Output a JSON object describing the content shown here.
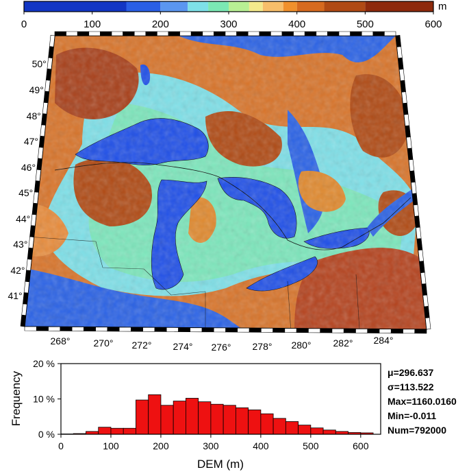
{
  "colorbar": {
    "unit": "m",
    "ticks": [
      "0",
      "100",
      "200",
      "300",
      "400",
      "500",
      "600"
    ],
    "tick_values": [
      0,
      100,
      200,
      300,
      400,
      500,
      600
    ],
    "range": [
      0,
      600
    ],
    "segments": [
      {
        "from": 0,
        "to": 150,
        "color": "#1236c4"
      },
      {
        "from": 150,
        "to": 200,
        "color": "#2a5fe6"
      },
      {
        "from": 200,
        "to": 240,
        "color": "#5b96f0"
      },
      {
        "from": 240,
        "to": 270,
        "color": "#7ee0e8"
      },
      {
        "from": 270,
        "to": 300,
        "color": "#7be8b4"
      },
      {
        "from": 300,
        "to": 330,
        "color": "#b8f094"
      },
      {
        "from": 330,
        "to": 350,
        "color": "#f4e98c"
      },
      {
        "from": 350,
        "to": 380,
        "color": "#f7be6a"
      },
      {
        "from": 380,
        "to": 400,
        "color": "#f0902c"
      },
      {
        "from": 400,
        "to": 440,
        "color": "#d66a1f"
      },
      {
        "from": 440,
        "to": 500,
        "color": "#b04a14"
      },
      {
        "from": 500,
        "to": 600,
        "color": "#8e2a0c"
      }
    ]
  },
  "map": {
    "lat_labels": [
      "50°",
      "49°",
      "48°",
      "47°",
      "46°",
      "45°",
      "44°",
      "43°",
      "42°",
      "41°"
    ],
    "lon_labels": [
      "268°",
      "270°",
      "272°",
      "274°",
      "276°",
      "278°",
      "280°",
      "282°",
      "284°"
    ],
    "colors": {
      "lake": "#1f4fe8",
      "low": "#2a62e6",
      "mid_cyan": "#7ee0e8",
      "mid_green": "#7be8b4",
      "orange": "#d8742a",
      "high": "#a8401a"
    }
  },
  "histogram": {
    "ylabel": "Frequency",
    "xlabel": "DEM (m)",
    "y_ticks": [
      "0 %",
      "10 %",
      "20 %"
    ],
    "y_tick_values": [
      0,
      10,
      20
    ],
    "x_ticks": [
      "0",
      "100",
      "200",
      "300",
      "400",
      "500",
      "600"
    ],
    "x_tick_values": [
      0,
      100,
      200,
      300,
      400,
      500,
      600
    ],
    "xlim": [
      0,
      640
    ],
    "ylim": [
      0,
      20
    ],
    "bar_color": "#ee1111",
    "stats": [
      "μ=296.637",
      "σ=113.522",
      "Max=1160.0160",
      "Min=-0.011",
      "Num=792000"
    ]
  },
  "chart_data": {
    "type": "bar",
    "title": "",
    "xlabel": "DEM (m)",
    "ylabel": "Frequency",
    "bin_width": 25,
    "bin_starts": [
      0,
      25,
      50,
      75,
      100,
      125,
      150,
      175,
      200,
      225,
      250,
      275,
      300,
      325,
      350,
      375,
      400,
      425,
      450,
      475,
      500,
      525,
      550,
      575,
      600
    ],
    "values": [
      0.1,
      0.2,
      0.8,
      2.0,
      1.7,
      1.7,
      9.7,
      11.2,
      8.2,
      9.4,
      10.2,
      9.2,
      8.5,
      8.2,
      7.5,
      6.9,
      5.8,
      4.5,
      3.6,
      2.6,
      1.8,
      1.2,
      0.8,
      0.5,
      0.4
    ],
    "xlim": [
      0,
      640
    ],
    "ylim": [
      0,
      20
    ],
    "grid": false,
    "legend": "none"
  }
}
